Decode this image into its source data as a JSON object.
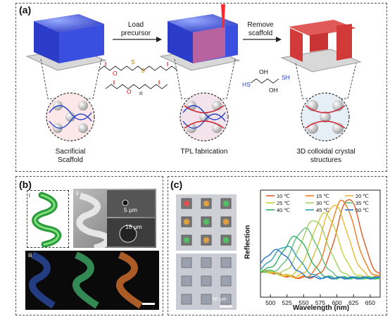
{
  "panel_a": {
    "label": "(a)",
    "arrow1": [
      "Load",
      "precursor"
    ],
    "arrow2": [
      "Remove",
      "scaffold"
    ],
    "captions": {
      "left": [
        "Sacrificial",
        "Scaffold"
      ],
      "middle": [
        "TPL fabrication"
      ],
      "right": [
        "3D colloidal crystal",
        "structures"
      ]
    },
    "chem_labels": {
      "sulfur": "S",
      "n": "n",
      "hs": "HS",
      "sh": "SH",
      "oh": "OH",
      "o": "O"
    }
  },
  "panel_b": {
    "label": "(b)",
    "sub_i": "i",
    "sub_ii": "ii",
    "sub_iii": "iii",
    "scale1": "5 μm",
    "scale2": "16 μm"
  },
  "panel_c": {
    "label": "(c)",
    "scalebar": "50 μm",
    "chart_data": {
      "type": "line",
      "xlabel": "Wavelength (nm)",
      "ylabel": "Reflection",
      "xlim": [
        485,
        665
      ],
      "xticks": [
        500,
        525,
        550,
        575,
        600,
        625,
        650
      ],
      "yticks": [],
      "grid": false,
      "legend_position": "top",
      "series": [
        {
          "name": "10 ℃",
          "color": "#e05a2a",
          "peak": 618,
          "width": 26,
          "height": 0.92
        },
        {
          "name": "15 ℃",
          "color": "#f07a1a",
          "peak": 608,
          "width": 27,
          "height": 0.9
        },
        {
          "name": "20 ℃",
          "color": "#e8b830",
          "peak": 596,
          "width": 28,
          "height": 0.86
        },
        {
          "name": "25 ℃",
          "color": "#c8d040",
          "peak": 582,
          "width": 28,
          "height": 0.78
        },
        {
          "name": "30 ℃",
          "color": "#a0d060",
          "peak": 566,
          "width": 28,
          "height": 0.72
        },
        {
          "name": "35 ℃",
          "color": "#60c080",
          "peak": 552,
          "width": 27,
          "height": 0.64
        },
        {
          "name": "40 ℃",
          "color": "#30b060",
          "peak": 538,
          "width": 26,
          "height": 0.56
        },
        {
          "name": "45 ℃",
          "color": "#30a0b0",
          "peak": 525,
          "width": 26,
          "height": 0.46
        },
        {
          "name": "50 ℃",
          "color": "#2a70c8",
          "peak": 512,
          "width": 26,
          "height": 0.4
        }
      ]
    }
  }
}
